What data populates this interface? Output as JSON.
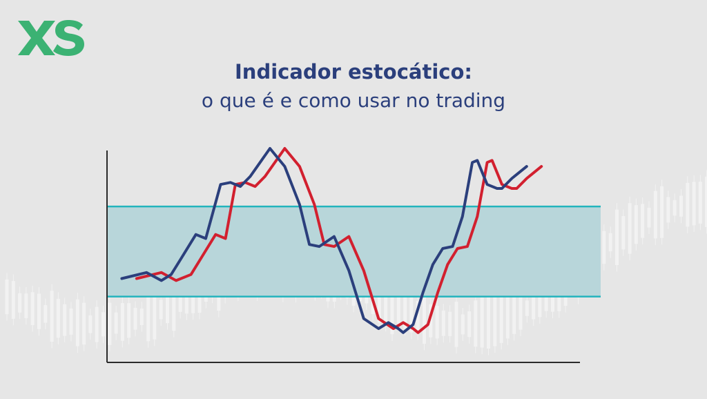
{
  "brand": {
    "name": "XS",
    "color": "#3bb273"
  },
  "header": {
    "title": "Indicador estocático:",
    "subtitle": "o que é e como usar no trading"
  },
  "colors": {
    "title": "#2b3f7c",
    "blue_line": "#2b3f7c",
    "red_line": "#d2202f",
    "band_fill": "#b8d6da",
    "band_edge": "#22b4bd",
    "axis": "#2a2a2a"
  },
  "chart_data": {
    "type": "line",
    "axes": {
      "xlabel": "",
      "ylabel": "",
      "ticks": false,
      "grid": false
    },
    "xlim": [
      0,
      100
    ],
    "ylim": [
      0,
      100
    ],
    "band": {
      "lower": 26,
      "upper": 71
    },
    "series": [
      {
        "color_key": "blue_line",
        "x": [
          3,
          8,
          11,
          13,
          15,
          18,
          20,
          23,
          25,
          27,
          29,
          33,
          36,
          39,
          41,
          43,
          46,
          49,
          52,
          55,
          57,
          59,
          60,
          62,
          64,
          66,
          68,
          70,
          72,
          74,
          75,
          77,
          79,
          80,
          82,
          85
        ],
        "y": [
          35,
          38,
          34,
          37,
          45,
          57,
          55,
          82,
          83,
          81,
          86,
          100,
          91,
          72,
          52,
          51,
          56,
          39,
          15,
          10,
          13,
          10,
          8,
          12,
          28,
          42,
          50,
          51,
          66,
          93,
          94,
          82,
          80,
          80,
          85,
          91
        ]
      },
      {
        "color_key": "red_line",
        "x": [
          6,
          11,
          14,
          17,
          19,
          22,
          24,
          26,
          28,
          30,
          32,
          36,
          39,
          42,
          44,
          46,
          49,
          52,
          55,
          58,
          60,
          62,
          63,
          65,
          67,
          69,
          71,
          73,
          75,
          77,
          78,
          80,
          82,
          83,
          85,
          88
        ],
        "y": [
          35,
          38,
          34,
          37,
          45,
          57,
          55,
          82,
          83,
          81,
          86,
          100,
          91,
          72,
          52,
          51,
          56,
          39,
          15,
          10,
          13,
          10,
          8,
          12,
          28,
          42,
          50,
          51,
          66,
          93,
          94,
          82,
          80,
          80,
          85,
          91
        ]
      }
    ]
  }
}
